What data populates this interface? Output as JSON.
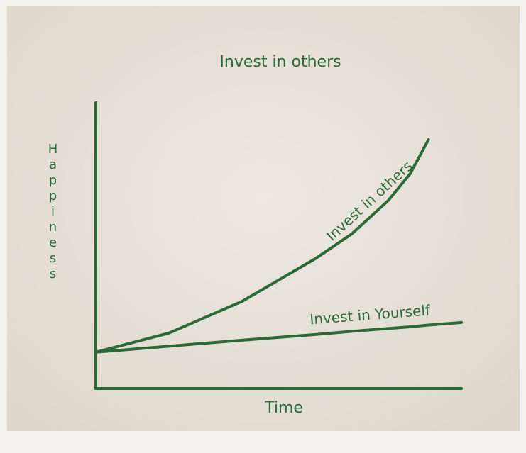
{
  "chart_data": {
    "type": "line",
    "title": "Invest in others",
    "x_label": "Time",
    "y_label": "Happiness",
    "x": [
      0,
      2,
      4,
      6,
      7,
      8,
      8.6,
      9.1,
      10
    ],
    "series": [
      {
        "name": "Invest in others",
        "color": "#2b6a38",
        "values": [
          1.27,
          1.94,
          3.05,
          4.54,
          5.41,
          6.58,
          7.52,
          8.71,
          null
        ]
      },
      {
        "name": "Invest in Yourself",
        "color": "#2b6a38",
        "values": [
          1.27,
          1.48,
          1.69,
          1.89,
          2.0,
          2.1,
          2.16,
          2.22,
          2.31
        ]
      }
    ],
    "xlim": [
      0,
      10
    ],
    "ylim": [
      0,
      10
    ]
  }
}
